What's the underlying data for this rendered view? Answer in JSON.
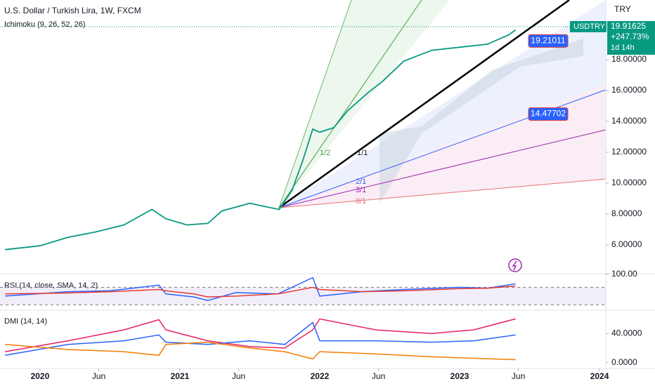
{
  "chart_data": [
    {
      "type": "line",
      "title": "U.S. Dollar / Turkish Lira, 1W, FXCM",
      "subtitle": "Ichimoku (9, 26, 52, 26)",
      "currency": "TRY",
      "color": "#089981",
      "x": [
        2019.75,
        2020.0,
        2020.2,
        2020.4,
        2020.6,
        2020.8,
        2020.9,
        2021.05,
        2021.2,
        2021.3,
        2021.5,
        2021.6,
        2021.71,
        2021.8,
        2021.88,
        2021.95,
        2022.0,
        2022.1,
        2022.2,
        2022.35,
        2022.45,
        2022.6,
        2022.8,
        2023.0,
        2023.2,
        2023.35,
        2023.4
      ],
      "values": [
        5.7,
        5.95,
        6.5,
        6.85,
        7.3,
        8.3,
        7.7,
        7.3,
        7.4,
        8.2,
        8.7,
        8.5,
        8.3,
        9.5,
        11.5,
        13.5,
        13.3,
        13.6,
        14.7,
        15.9,
        16.6,
        17.9,
        18.6,
        18.8,
        19.0,
        19.6,
        19.91625
      ],
      "ylim": [
        4.14,
        21.86
      ],
      "yticks": [
        {
          "value": 6,
          "label": "6.00000"
        },
        {
          "value": 8,
          "label": "8.00000"
        },
        {
          "value": 10,
          "label": "10.00000"
        },
        {
          "value": 12,
          "label": "12.00000"
        },
        {
          "value": 14,
          "label": "14.00000"
        },
        {
          "value": 16,
          "label": "16.00000"
        },
        {
          "value": 18,
          "label": "18.00000"
        }
      ],
      "xlim": [
        2019.714,
        2024.045
      ],
      "xticks": [
        2020,
        {
          "value": 2020.42,
          "label": "Jun"
        },
        2021,
        {
          "value": 2021.42,
          "label": "Jun"
        },
        2022,
        {
          "value": 2022.42,
          "label": "Jun"
        },
        2023,
        {
          "value": 2023.42,
          "label": "Jun"
        },
        2024
      ],
      "symbol": "USDTRY",
      "change": "+247.73%",
      "countdown": "1d 14h",
      "markers": [
        19.21011,
        14.47702
      ],
      "fan_labels": [
        "1/1",
        "1/2",
        "2/1",
        "3/1",
        "8/1"
      ],
      "grid": false
    },
    {
      "type": "line",
      "title": "RSI (14, close, SMA, 14, 2)",
      "x": [
        2019.75,
        2020.2,
        2020.5,
        2020.85,
        2020.9,
        2021.1,
        2021.2,
        2021.4,
        2021.7,
        2021.95,
        2022.0,
        2022.3,
        2022.6,
        2023.0,
        2023.2,
        2023.4
      ],
      "series": [
        {
          "color": "#2962ff",
          "values": [
            50,
            60,
            62,
            75,
            55,
            48,
            40,
            58,
            55,
            92,
            50,
            60,
            65,
            70,
            68,
            78
          ]
        },
        {
          "color": "#e53935",
          "values": [
            55,
            57,
            60,
            65,
            62,
            55,
            48,
            50,
            55,
            70,
            65,
            60,
            62,
            67,
            68,
            73
          ]
        }
      ],
      "band": [
        30,
        70
      ],
      "ylim": [
        17.8,
        101
      ],
      "yticks": [
        {
          "value": 100,
          "label": "100.00"
        }
      ]
    },
    {
      "type": "line",
      "title": "DMI (14, 14)",
      "x": [
        2019.75,
        2020.2,
        2020.6,
        2020.85,
        2020.9,
        2021.2,
        2021.5,
        2021.75,
        2021.95,
        2022.0,
        2022.4,
        2022.8,
        2023.1,
        2023.4
      ],
      "series": [
        {
          "color": "#e91e63",
          "values": [
            15,
            30,
            45,
            59,
            45,
            30,
            22,
            20,
            45,
            60,
            45,
            40,
            45,
            60
          ]
        },
        {
          "color": "#2962ff",
          "values": [
            10,
            25,
            30,
            38,
            28,
            25,
            30,
            25,
            55,
            30,
            30,
            28,
            30,
            38
          ]
        },
        {
          "color": "#f57c00",
          "values": [
            25,
            18,
            15,
            10,
            25,
            28,
            20,
            15,
            5,
            15,
            12,
            8,
            6,
            4
          ]
        }
      ],
      "ylim": [
        -8,
        72
      ],
      "yticks": [
        {
          "value": 40,
          "label": "40.0000"
        },
        {
          "value": 0,
          "label": "0.0000"
        }
      ]
    }
  ]
}
